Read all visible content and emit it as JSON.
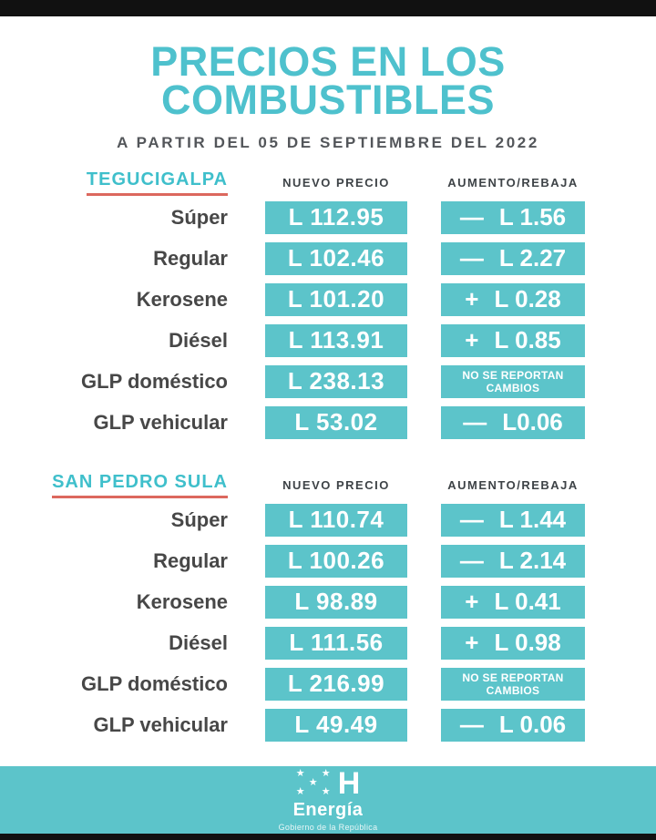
{
  "header": {
    "title_line1": "PRECIOS EN LOS",
    "title_line2": "COMBUSTIBLES",
    "subtitle": "A PARTIR DEL 05 DE SEPTIEMBRE DEL 2022"
  },
  "columns": {
    "new_price": "NUEVO PRECIO",
    "change": "AUMENTO/REBAJA"
  },
  "sections": [
    {
      "city": "TEGUCIGALPA",
      "rows": [
        {
          "fuel": "Súper",
          "price": "L 112.95",
          "sign": "—",
          "amount": "L 1.56"
        },
        {
          "fuel": "Regular",
          "price": "L 102.46",
          "sign": "—",
          "amount": "L 2.27"
        },
        {
          "fuel": "Kerosene",
          "price": "L 101.20",
          "sign": "+",
          "amount": "L 0.28"
        },
        {
          "fuel": "Diésel",
          "price": "L 113.91",
          "sign": "+",
          "amount": "L 0.85"
        },
        {
          "fuel": "GLP doméstico",
          "price": "L 238.13",
          "no_change_line1": "NO SE REPORTAN",
          "no_change_line2": "CAMBIOS"
        },
        {
          "fuel": "GLP vehicular",
          "price": "L 53.02",
          "sign": "—",
          "amount": "L0.06"
        }
      ]
    },
    {
      "city": "SAN PEDRO SULA",
      "rows": [
        {
          "fuel": "Súper",
          "price": "L 110.74",
          "sign": "—",
          "amount": "L 1.44"
        },
        {
          "fuel": "Regular",
          "price": "L 100.26",
          "sign": "—",
          "amount": "L 2.14"
        },
        {
          "fuel": "Kerosene",
          "price": "L 98.89",
          "sign": "+",
          "amount": "L 0.41"
        },
        {
          "fuel": "Diésel",
          "price": "L 111.56",
          "sign": "+",
          "amount": "L 0.98"
        },
        {
          "fuel": "GLP doméstico",
          "price": "L 216.99",
          "no_change_line1": "NO SE REPORTAN",
          "no_change_line2": "CAMBIOS"
        },
        {
          "fuel": "GLP vehicular",
          "price": "L 49.49",
          "sign": "—",
          "amount": "L 0.06"
        }
      ]
    }
  ],
  "footer": {
    "logo_letter": "H",
    "brand": "Energía",
    "tagline": "Gobierno de la República"
  },
  "colors": {
    "teal_box": "#5CC4CA",
    "teal_title": "#4EC1CD",
    "teal_city": "#3FBFCB",
    "underline_red": "#DC685E",
    "text_dark": "#474747",
    "header_text": "#3E4347",
    "subtitle_text": "#53565A",
    "footer_band": "#5CC4CA",
    "frame_bar": "#111111"
  }
}
